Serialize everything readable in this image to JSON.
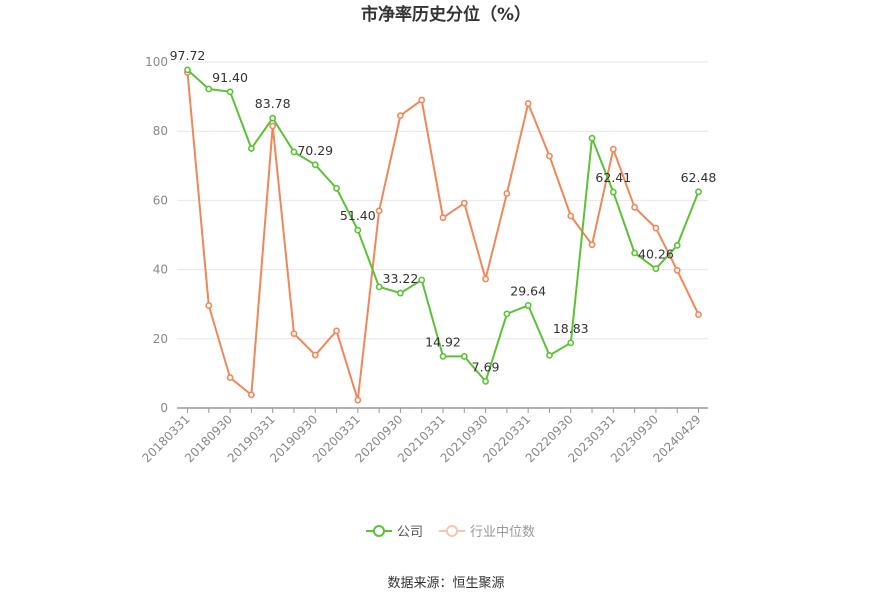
{
  "chart_data": {
    "type": "line",
    "title": "市净率历史分位（%）",
    "source": "数据来源：恒生聚源",
    "ylim": [
      0,
      100
    ],
    "yticks": [
      0,
      20,
      40,
      60,
      80,
      100
    ],
    "grid": true,
    "legend_position": "bottom",
    "x": [
      "20180331",
      "20180630",
      "20180930",
      "20181231",
      "20190331",
      "20190630",
      "20190930",
      "20191231",
      "20200331",
      "20200630",
      "20200930",
      "20201231",
      "20210331",
      "20210630",
      "20210930",
      "20211231",
      "20220331",
      "20220630",
      "20220930",
      "20221231",
      "20230331",
      "20230630",
      "20230930",
      "20231231",
      "20240429"
    ],
    "xtick_labels": [
      "20180331",
      "20180930",
      "20190331",
      "20190930",
      "20200331",
      "20200930",
      "20210331",
      "20210930",
      "20220331",
      "20220930",
      "20230331",
      "20230930",
      "20240429"
    ],
    "series": [
      {
        "name": "公司",
        "color": "#5bc236",
        "values": [
          97.72,
          92.2,
          91.4,
          75.0,
          83.78,
          74.0,
          70.29,
          63.5,
          51.4,
          35.0,
          33.22,
          37.0,
          14.92,
          14.9,
          7.69,
          27.2,
          29.64,
          15.2,
          18.83,
          78.0,
          62.41,
          44.8,
          40.26,
          47.0,
          62.48
        ]
      },
      {
        "name": "行业中位数",
        "color": "#f0875a",
        "values": [
          97.0,
          29.6,
          8.8,
          3.8,
          81.5,
          21.5,
          15.3,
          22.3,
          2.3,
          57.0,
          84.5,
          89.0,
          55.0,
          59.2,
          37.3,
          62.0,
          88.0,
          72.8,
          55.5,
          47.2,
          74.8,
          58.0,
          52.0,
          39.8,
          27.0
        ]
      }
    ],
    "data_labels": [
      {
        "series": 0,
        "index": 0,
        "text": "97.72"
      },
      {
        "series": 0,
        "index": 2,
        "text": "91.40"
      },
      {
        "series": 0,
        "index": 4,
        "text": "83.78"
      },
      {
        "series": 0,
        "index": 6,
        "text": "70.29"
      },
      {
        "series": 0,
        "index": 8,
        "text": "51.40"
      },
      {
        "series": 0,
        "index": 10,
        "text": "33.22"
      },
      {
        "series": 0,
        "index": 12,
        "text": "14.92"
      },
      {
        "series": 0,
        "index": 14,
        "text": "7.69"
      },
      {
        "series": 0,
        "index": 16,
        "text": "29.64"
      },
      {
        "series": 0,
        "index": 18,
        "text": "18.83"
      },
      {
        "series": 0,
        "index": 20,
        "text": "62.41"
      },
      {
        "series": 0,
        "index": 22,
        "text": "40.26"
      },
      {
        "series": 0,
        "index": 24,
        "text": "62.48"
      }
    ]
  }
}
